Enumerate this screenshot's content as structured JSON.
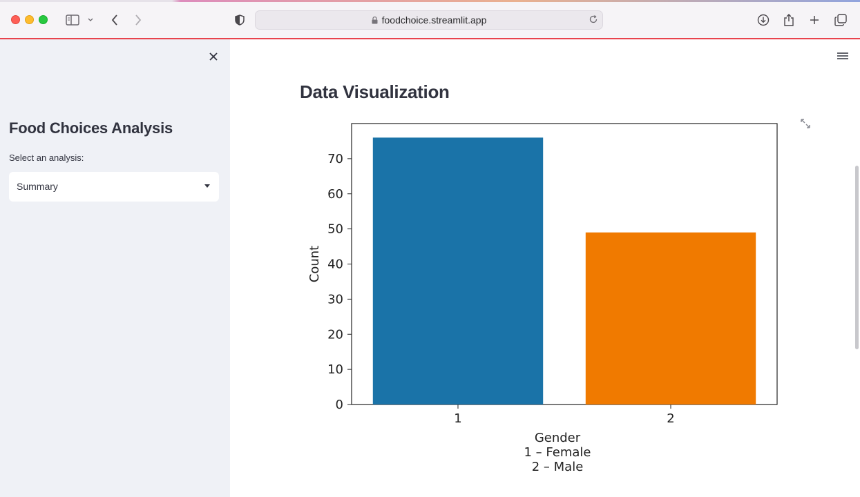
{
  "browser": {
    "url": "foodchoice.streamlit.app"
  },
  "sidebar": {
    "title": "Food Choices Analysis",
    "select_label": "Select an analysis:",
    "selected_value": "Summary"
  },
  "main": {
    "title": "Data Visualization"
  },
  "chart_data": {
    "type": "bar",
    "categories": [
      "1",
      "2"
    ],
    "values": [
      76,
      49
    ],
    "colors": [
      "#1a73a8",
      "#f07a00"
    ],
    "xlabel_lines": [
      "Gender",
      "1 – Female",
      "2 – Male"
    ],
    "ylabel": "Count",
    "ylim": [
      0,
      80
    ],
    "yticks": [
      0,
      10,
      20,
      30,
      40,
      50,
      60,
      70
    ],
    "grid": false
  }
}
